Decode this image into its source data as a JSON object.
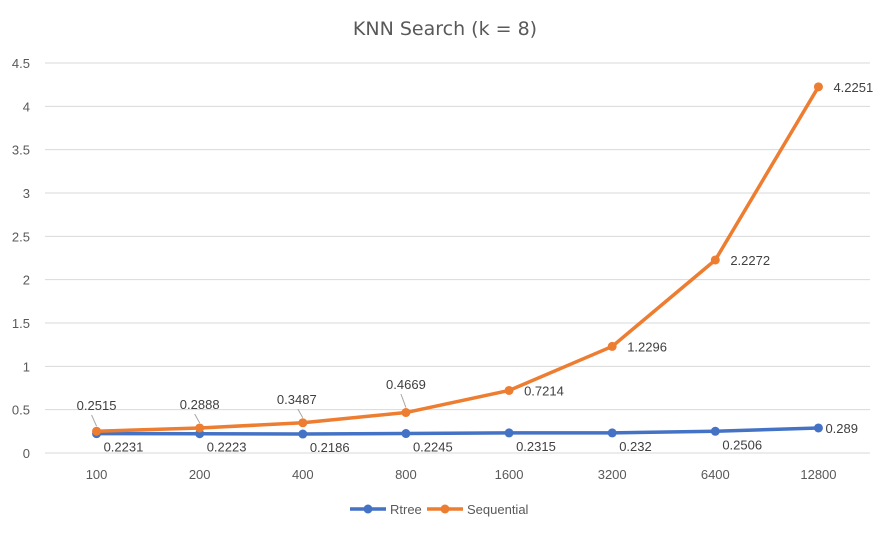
{
  "chart_data": {
    "type": "line",
    "title": "KNN Search (k = 8)",
    "xlabel": "",
    "ylabel": "",
    "categories": [
      "100",
      "200",
      "400",
      "800",
      "1600",
      "3200",
      "6400",
      "12800"
    ],
    "y_ticks": [
      "0",
      "0.5",
      "1",
      "1.5",
      "2",
      "2.5",
      "3",
      "3.5",
      "4",
      "4.5"
    ],
    "ylim": [
      0,
      4.5
    ],
    "grid": true,
    "legend_position": "bottom",
    "series": [
      {
        "name": "Rtree",
        "color": "#4472c4",
        "values": [
          0.2231,
          0.2223,
          0.2186,
          0.2245,
          0.2315,
          0.232,
          0.2506,
          0.289
        ],
        "labels": [
          "0.2231",
          "0.2223",
          "0.2186",
          "0.2245",
          "0.2315",
          "0.232",
          "0.2506",
          "0.289"
        ]
      },
      {
        "name": "Sequential",
        "color": "#ed7d31",
        "values": [
          0.2515,
          0.2888,
          0.3487,
          0.4669,
          0.7214,
          1.2296,
          2.2272,
          4.2251
        ],
        "labels": [
          "0.2515",
          "0.2888",
          "0.3487",
          "0.4669",
          "0.7214",
          "1.2296",
          "2.2272",
          "4.2251"
        ]
      }
    ]
  }
}
